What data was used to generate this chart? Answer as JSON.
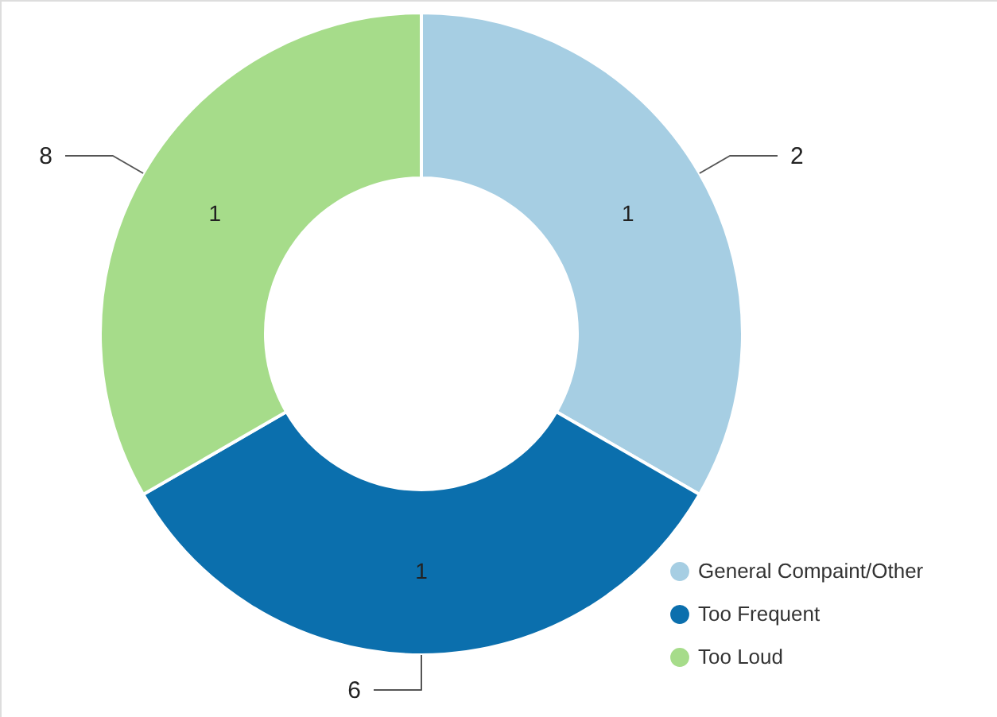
{
  "chart_data": {
    "type": "donut",
    "categories": [
      "General Compaint/Other",
      "Too Frequent",
      "Too Loud"
    ],
    "values": [
      1,
      1,
      1
    ],
    "colors": [
      "#a6cee3",
      "#0b6fad",
      "#a6dc8a"
    ],
    "data_labels": true,
    "legend": "bottom right",
    "annotations": [
      {
        "text": "2",
        "x": "General Compaint/Other"
      },
      {
        "text": "6",
        "x": "Too Frequent"
      },
      {
        "text": "8",
        "x": "Too Loud"
      }
    ]
  }
}
